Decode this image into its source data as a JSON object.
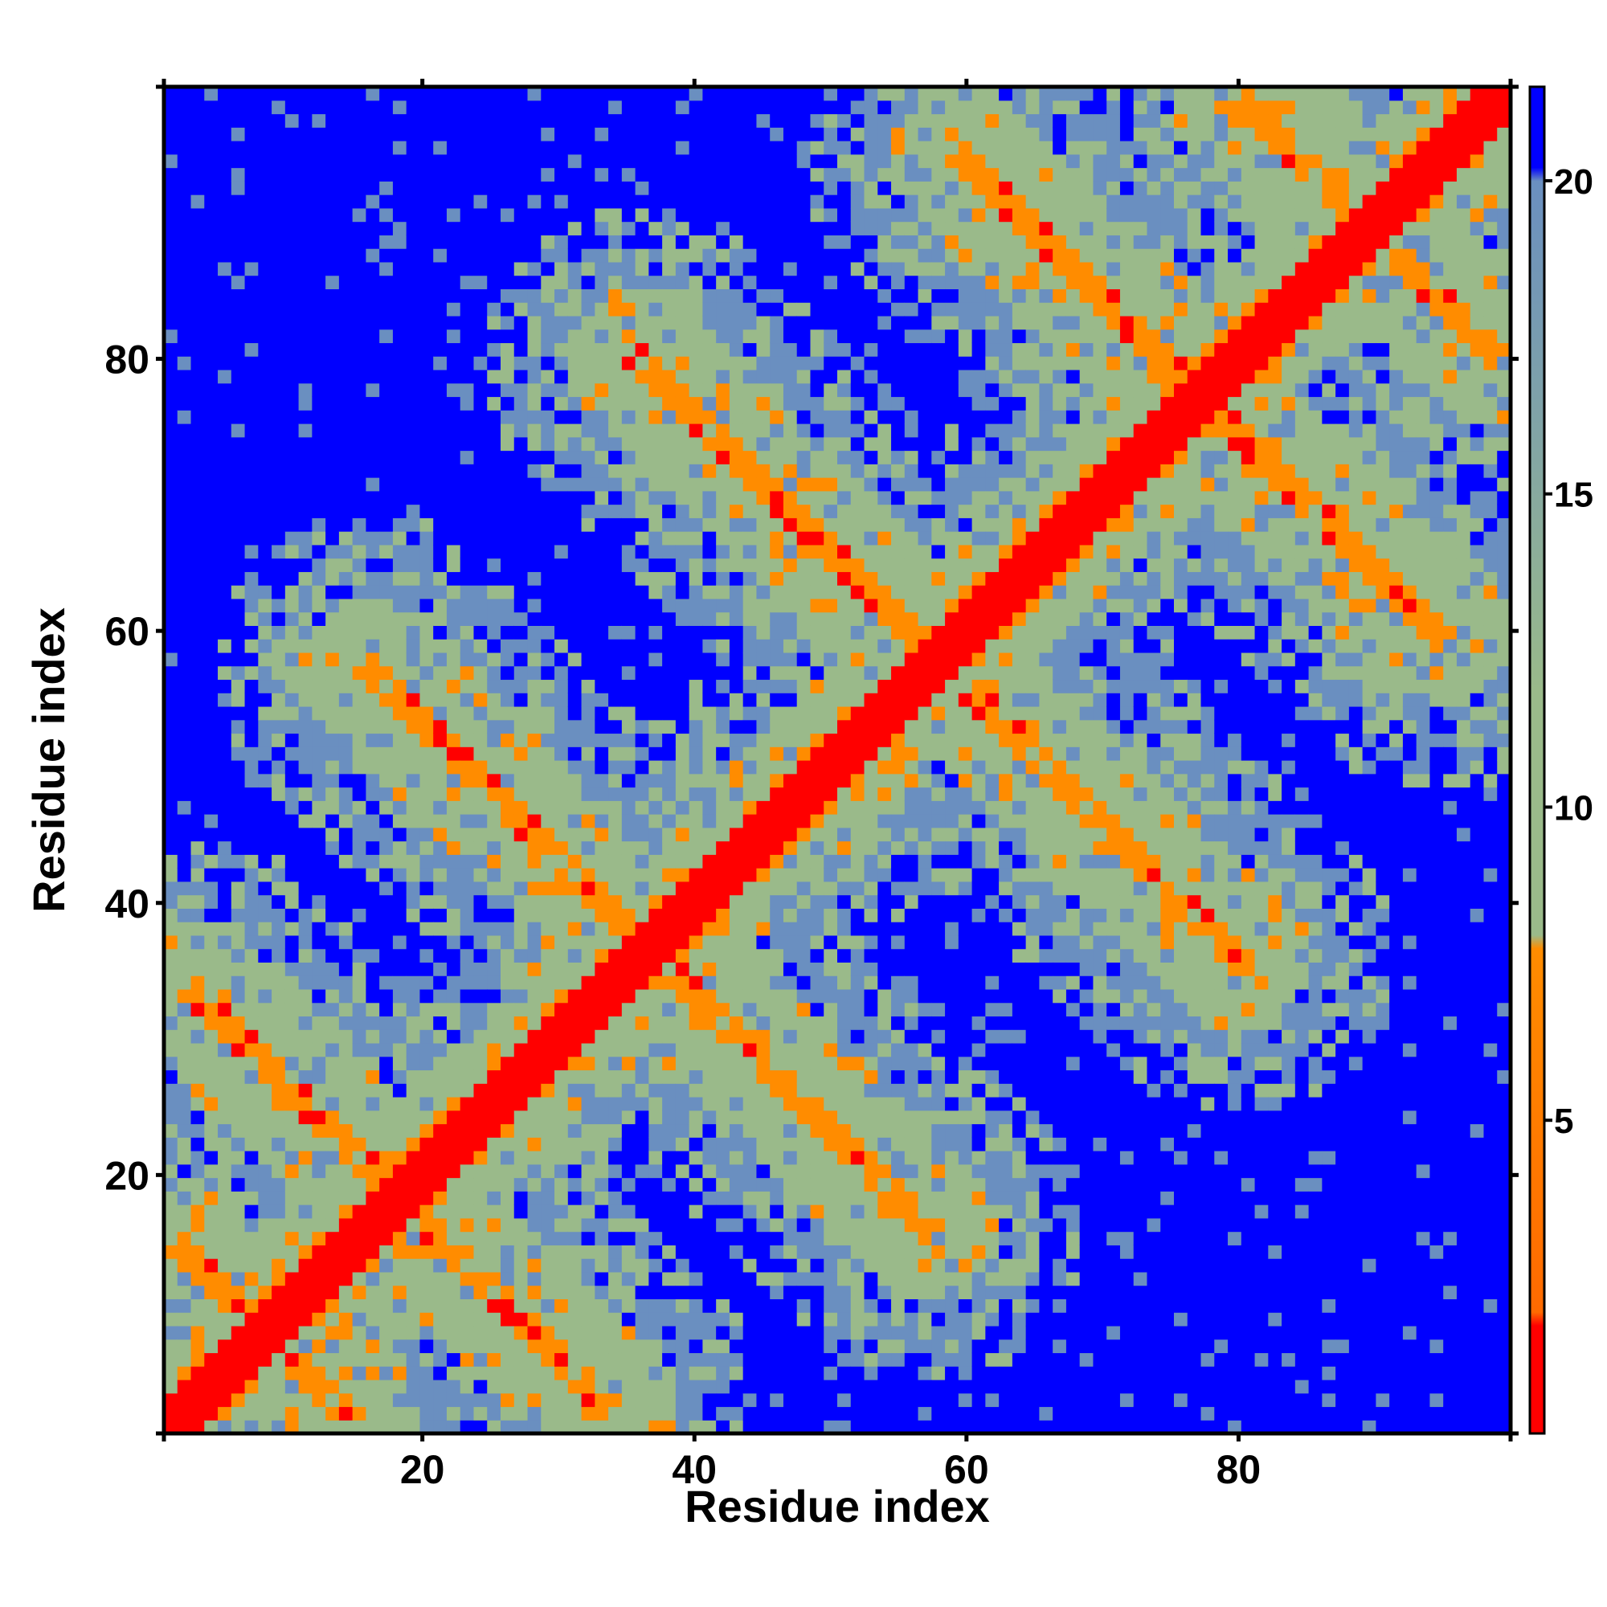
{
  "chart_data": {
    "type": "heatmap",
    "title": "",
    "xlabel": "Residue index",
    "ylabel": "Residue index",
    "n_residues": 100,
    "xlim": [
      1,
      100
    ],
    "ylim": [
      1,
      100
    ],
    "x_ticks": [
      20,
      40,
      60,
      80
    ],
    "y_ticks": [
      20,
      40,
      60,
      80
    ],
    "colorbar": {
      "ticks": [
        5,
        10,
        15,
        20
      ],
      "range": [
        0,
        21.5
      ],
      "colors": [
        "#ff0000",
        "#ff8c00",
        "#9aba8a",
        "#6a8fc0",
        "#0000ff"
      ]
    },
    "value_bands": {
      "red": "< 4",
      "orange": "4 - 8",
      "green": "8 - 12",
      "steel_blue": "12 - 20",
      "blue": "> 20"
    },
    "diagonal": {
      "orientation": "i = j",
      "value": 0
    },
    "contact_bands": [
      {
        "name": "anti-diagonal-1",
        "ranges": [
          [
            2,
            14
          ],
          [
            14,
            2
          ]
        ]
      },
      {
        "name": "anti-diagonal-2",
        "ranges": [
          [
            3,
            33
          ],
          [
            33,
            3
          ]
        ]
      },
      {
        "name": "anti-diagonal-3",
        "ranges": [
          [
            16,
            57
          ],
          [
            57,
            16
          ]
        ]
      },
      {
        "name": "anti-diagonal-4",
        "ranges": [
          [
            36,
            80
          ],
          [
            80,
            36
          ]
        ]
      },
      {
        "name": "anti-diagonal-5",
        "ranges": [
          [
            60,
            95
          ],
          [
            95,
            60
          ]
        ]
      },
      {
        "name": "anti-diagonal-6",
        "ranges": [
          [
            81,
            99
          ],
          [
            99,
            81
          ]
        ]
      }
    ]
  }
}
